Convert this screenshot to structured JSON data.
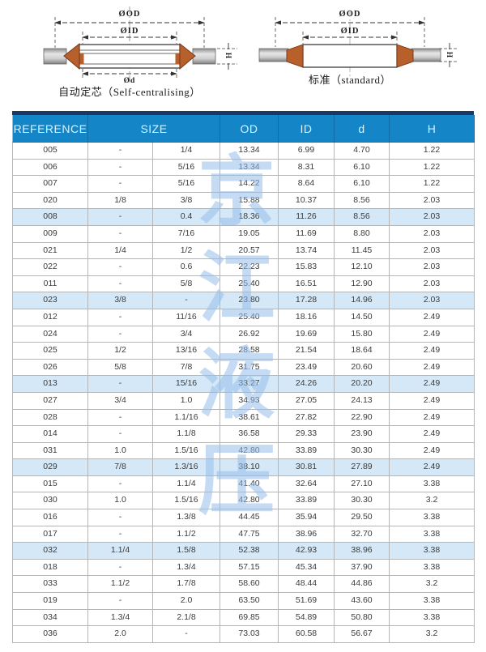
{
  "diagrams": {
    "left": {
      "od_label": "ØOD",
      "id_label": "ØID",
      "d_label": "Ød",
      "h_label": "H",
      "caption": "自动定芯（Self-centralising）"
    },
    "right": {
      "od_label": "ØOD",
      "id_label": "ØID",
      "h_label": "H",
      "caption": "标准（standard）"
    }
  },
  "watermark": {
    "chars": [
      "京",
      "江",
      "液",
      "压"
    ],
    "color": "rgba(150,188,233,0.55)"
  },
  "table": {
    "header": {
      "reference": "REFERENCE",
      "size": "SIZE",
      "od": "OD",
      "id": "ID",
      "d": "d",
      "h": "H"
    },
    "colors": {
      "header_bg": "#1486c8",
      "header_strip": "#1b3864",
      "header_text": "#d9f1fd",
      "row_highlight": "#d4e8f7",
      "border": "#b5b5b5",
      "cell_text": "#3c3c3c"
    },
    "highlight_rows": [
      4,
      9,
      14,
      19,
      24
    ],
    "rows": [
      [
        "005",
        "-",
        "1/4",
        "13.34",
        "6.99",
        "4.70",
        "1.22"
      ],
      [
        "006",
        "-",
        "5/16",
        "13.34",
        "8.31",
        "6.10",
        "1.22"
      ],
      [
        "007",
        "-",
        "5/16",
        "14.22",
        "8.64",
        "6.10",
        "1.22"
      ],
      [
        "020",
        "1/8",
        "3/8",
        "15.88",
        "10.37",
        "8.56",
        "2.03"
      ],
      [
        "008",
        "-",
        "0.4",
        "18.36",
        "11.26",
        "8.56",
        "2.03"
      ],
      [
        "009",
        "-",
        "7/16",
        "19.05",
        "11.69",
        "8.80",
        "2.03"
      ],
      [
        "021",
        "1/4",
        "1/2",
        "20.57",
        "13.74",
        "11.45",
        "2.03"
      ],
      [
        "022",
        "-",
        "0.6",
        "22.23",
        "15.83",
        "12.10",
        "2.03"
      ],
      [
        "011",
        "-",
        "5/8",
        "25.40",
        "16.51",
        "12.90",
        "2.03"
      ],
      [
        "023",
        "3/8",
        "-",
        "23.80",
        "17.28",
        "14.96",
        "2.03"
      ],
      [
        "012",
        "-",
        "11/16",
        "25.40",
        "18.16",
        "14.50",
        "2.49"
      ],
      [
        "024",
        "-",
        "3/4",
        "26.92",
        "19.69",
        "15.80",
        "2.49"
      ],
      [
        "025",
        "1/2",
        "13/16",
        "28.58",
        "21.54",
        "18.64",
        "2.49"
      ],
      [
        "026",
        "5/8",
        "7/8",
        "31.75",
        "23.49",
        "20.60",
        "2.49"
      ],
      [
        "013",
        "-",
        "15/16",
        "33.27",
        "24.26",
        "20.20",
        "2.49"
      ],
      [
        "027",
        "3/4",
        "1.0",
        "34.93",
        "27.05",
        "24.13",
        "2.49"
      ],
      [
        "028",
        "-",
        "1.1/16",
        "38.61",
        "27.82",
        "22.90",
        "2.49"
      ],
      [
        "014",
        "-",
        "1.1/8",
        "36.58",
        "29.33",
        "23.90",
        "2.49"
      ],
      [
        "031",
        "1.0",
        "1.5/16",
        "42.80",
        "33.89",
        "30.30",
        "2.49"
      ],
      [
        "029",
        "7/8",
        "1.3/16",
        "38.10",
        "30.81",
        "27.89",
        "2.49"
      ],
      [
        "015",
        "-",
        "1.1/4",
        "41.40",
        "32.64",
        "27.10",
        "3.38"
      ],
      [
        "030",
        "1.0",
        "1.5/16",
        "42.80",
        "33.89",
        "30.30",
        "3.2"
      ],
      [
        "016",
        "-",
        "1.3/8",
        "44.45",
        "35.94",
        "29.50",
        "3.38"
      ],
      [
        "017",
        "-",
        "1.1/2",
        "47.75",
        "38.96",
        "32.70",
        "3.38"
      ],
      [
        "032",
        "1.1/4",
        "1.5/8",
        "52.38",
        "42.93",
        "38.96",
        "3.38"
      ],
      [
        "018",
        "-",
        "1.3/4",
        "57.15",
        "45.34",
        "37.90",
        "3.38"
      ],
      [
        "033",
        "1.1/2",
        "1.7/8",
        "58.60",
        "48.44",
        "44.86",
        "3.2"
      ],
      [
        "019",
        "-",
        "2.0",
        "63.50",
        "51.69",
        "43.60",
        "3.38"
      ],
      [
        "034",
        "1.3/4",
        "2.1/8",
        "69.85",
        "54.89",
        "50.80",
        "3.38"
      ],
      [
        "036",
        "2.0",
        "-",
        "73.03",
        "60.58",
        "56.67",
        "3.2"
      ]
    ]
  }
}
